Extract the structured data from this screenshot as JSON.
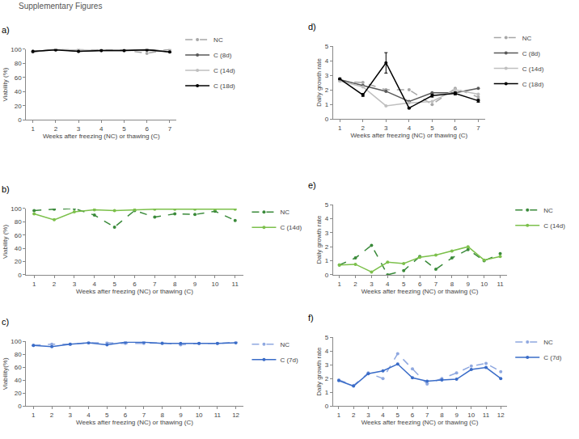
{
  "header": {
    "title": "Supplementary Figures"
  },
  "chart_data": [
    {
      "type": "line",
      "title": "a)",
      "x_label": "Weeks after freezing (NC) or thawing (C)",
      "y_label": "Viability (%)",
      "x": [
        1,
        2,
        3,
        4,
        5,
        6,
        7
      ],
      "xlim": [
        0.7,
        7.3
      ],
      "xticks": [
        1,
        2,
        3,
        4,
        5,
        6,
        7
      ],
      "ylim": [
        0,
        100
      ],
      "yticks": [
        0,
        20,
        40,
        60,
        80,
        100
      ],
      "grid": false,
      "legend": "right",
      "series": [
        {
          "name": "NC",
          "color": "#a6a6a6",
          "line_style": "dash",
          "marker": "circle",
          "values": [
            97,
            100,
            100,
            99,
            99,
            94,
            100
          ]
        },
        {
          "name": "C (8d)",
          "color": "#595959",
          "line_style": "solid",
          "marker": "circle",
          "values": [
            96,
            100,
            97,
            98,
            98,
            100,
            96
          ]
        },
        {
          "name": "C (14d)",
          "color": "#bfbfbf",
          "line_style": "solid",
          "marker": "circle",
          "values": [
            97,
            99,
            99,
            98,
            98,
            98,
            97
          ]
        },
        {
          "name": "C (18d)",
          "color": "#000000",
          "line_style": "solid",
          "marker": "circle",
          "values": [
            97,
            99,
            97,
            98,
            98,
            99,
            96
          ]
        }
      ]
    },
    {
      "type": "line",
      "title": "b)",
      "x_label": "Weeks after freezing (NC) or thawing (C)",
      "y_label": "Viability (%)",
      "x": [
        1,
        2,
        3,
        4,
        5,
        6,
        7,
        8,
        9,
        10,
        11
      ],
      "xlim": [
        0.6,
        11.4
      ],
      "xticks": [
        1,
        2,
        3,
        4,
        5,
        6,
        7,
        8,
        9,
        10,
        11
      ],
      "ylim": [
        0,
        100
      ],
      "yticks": [
        0,
        20,
        40,
        60,
        80,
        100
      ],
      "grid": false,
      "legend": "right",
      "series": [
        {
          "name": "NC",
          "color": "#3a8a3a",
          "line_style": "dash",
          "marker": "circle",
          "values": [
            97,
            99,
            100,
            90,
            72,
            97,
            87,
            92,
            91,
            96,
            82
          ]
        },
        {
          "name": "C (14d)",
          "color": "#7cc04b",
          "line_style": "solid",
          "marker": "circle",
          "values": [
            92,
            83,
            95,
            98,
            97,
            98,
            99,
            99,
            99,
            99,
            99
          ]
        }
      ]
    },
    {
      "type": "line",
      "title": "c)",
      "x_label": "Weeks after freezing (NC) or thawing (C)",
      "y_label": "Viability(%)",
      "x": [
        1,
        2,
        3,
        4,
        5,
        6,
        7,
        8,
        9,
        10,
        11,
        12
      ],
      "xlim": [
        0.6,
        12.4
      ],
      "xticks": [
        1,
        2,
        3,
        4,
        5,
        6,
        7,
        8,
        9,
        10,
        11,
        12
      ],
      "ylim": [
        0,
        100
      ],
      "yticks": [
        0,
        20,
        40,
        60,
        80,
        100
      ],
      "grid": false,
      "legend": "right",
      "series": [
        {
          "name": "NC",
          "color": "#8fa8e0",
          "line_style": "dash",
          "marker": "circle",
          "values": [
            94,
            96,
            96,
            98,
            98,
            97,
            97,
            98,
            95,
            97,
            97,
            99
          ]
        },
        {
          "name": "C (7d)",
          "color": "#3a6cc8",
          "line_style": "solid",
          "marker": "circle",
          "values": [
            94,
            92,
            96,
            98,
            95,
            99,
            99,
            97,
            97,
            97,
            97,
            98
          ]
        }
      ]
    },
    {
      "type": "line",
      "title": "d)",
      "x_label": "Weeks after freezing (NC) or thawing (C)",
      "y_label": "Daily growth rate",
      "x": [
        1,
        2,
        3,
        4,
        5,
        6,
        7
      ],
      "xlim": [
        0.7,
        7.3
      ],
      "xticks": [
        1,
        2,
        3,
        4,
        5,
        6,
        7
      ],
      "ylim": [
        0,
        5
      ],
      "yticks": [
        0,
        1,
        2,
        3,
        4,
        5
      ],
      "grid": false,
      "legend": "right",
      "series": [
        {
          "name": "NC",
          "color": "#a6a6a6",
          "line_style": "dash",
          "marker": "circle",
          "values": [
            2.6,
            2.5,
            2.0,
            2.0,
            1.0,
            2.1,
            1.5
          ]
        },
        {
          "name": "C (8d)",
          "color": "#595959",
          "line_style": "solid",
          "marker": "circle",
          "values": [
            2.7,
            2.3,
            1.9,
            1.2,
            1.8,
            1.8,
            2.1
          ]
        },
        {
          "name": "C (14d)",
          "color": "#bfbfbf",
          "line_style": "solid",
          "marker": "circle",
          "values": [
            2.6,
            2.2,
            0.9,
            1.1,
            1.2,
            2.0,
            1.7
          ]
        },
        {
          "name": "C (18d)",
          "color": "#000000",
          "line_style": "solid",
          "marker": "circle",
          "values": [
            2.75,
            1.65,
            3.85,
            0.75,
            1.6,
            1.75,
            1.25
          ],
          "errors": [
            0.05,
            0.1,
            0.7,
            0.05,
            0.1,
            0.1,
            0.1
          ]
        }
      ]
    },
    {
      "type": "line",
      "title": "e)",
      "x_label": "Weeks after freezing (NC) or thawing (C)",
      "y_label": "Daily growth rate",
      "x": [
        1,
        2,
        3,
        4,
        5,
        6,
        7,
        8,
        9,
        10,
        11
      ],
      "xlim": [
        0.6,
        11.4
      ],
      "xticks": [
        1,
        2,
        3,
        4,
        5,
        6,
        7,
        8,
        9,
        10,
        11
      ],
      "ylim": [
        0,
        5
      ],
      "yticks": [
        0,
        1,
        2,
        3,
        4,
        5
      ],
      "grid": false,
      "legend": "right",
      "series": [
        {
          "name": "NC",
          "color": "#3a8a3a",
          "line_style": "dash",
          "marker": "circle",
          "values": [
            0.7,
            1.2,
            2.1,
            0.0,
            0.3,
            1.3,
            0.4,
            1.2,
            1.8,
            1.0,
            1.5
          ]
        },
        {
          "name": "C (14d)",
          "color": "#7cc04b",
          "line_style": "solid",
          "marker": "circle",
          "values": [
            0.7,
            0.75,
            0.2,
            0.9,
            0.8,
            1.25,
            1.4,
            1.7,
            2.0,
            1.05,
            1.3
          ]
        }
      ]
    },
    {
      "type": "line",
      "title": "f)",
      "x_label": "Weeks after freezing (NC) or thawing (C)",
      "y_label": "Daily growth rate",
      "x": [
        1,
        2,
        3,
        4,
        5,
        6,
        7,
        8,
        9,
        10,
        11,
        12
      ],
      "xlim": [
        0.6,
        12.4
      ],
      "xticks": [
        1,
        2,
        3,
        4,
        5,
        6,
        7,
        8,
        9,
        10,
        11,
        12
      ],
      "ylim": [
        0,
        5
      ],
      "yticks": [
        0,
        1,
        2,
        3,
        4,
        5
      ],
      "grid": false,
      "legend": "right",
      "series": [
        {
          "name": "NC",
          "color": "#8fa8e0",
          "line_style": "dash",
          "marker": "circle",
          "values": [
            1.9,
            1.5,
            2.4,
            2.0,
            3.8,
            2.7,
            1.6,
            2.0,
            2.4,
            2.9,
            3.1,
            2.5
          ]
        },
        {
          "name": "C (7d)",
          "color": "#3a6cc8",
          "line_style": "solid",
          "marker": "circle",
          "values": [
            1.85,
            1.45,
            2.35,
            2.55,
            3.05,
            2.05,
            1.8,
            1.9,
            1.95,
            2.65,
            2.8,
            2.0
          ]
        }
      ]
    }
  ]
}
